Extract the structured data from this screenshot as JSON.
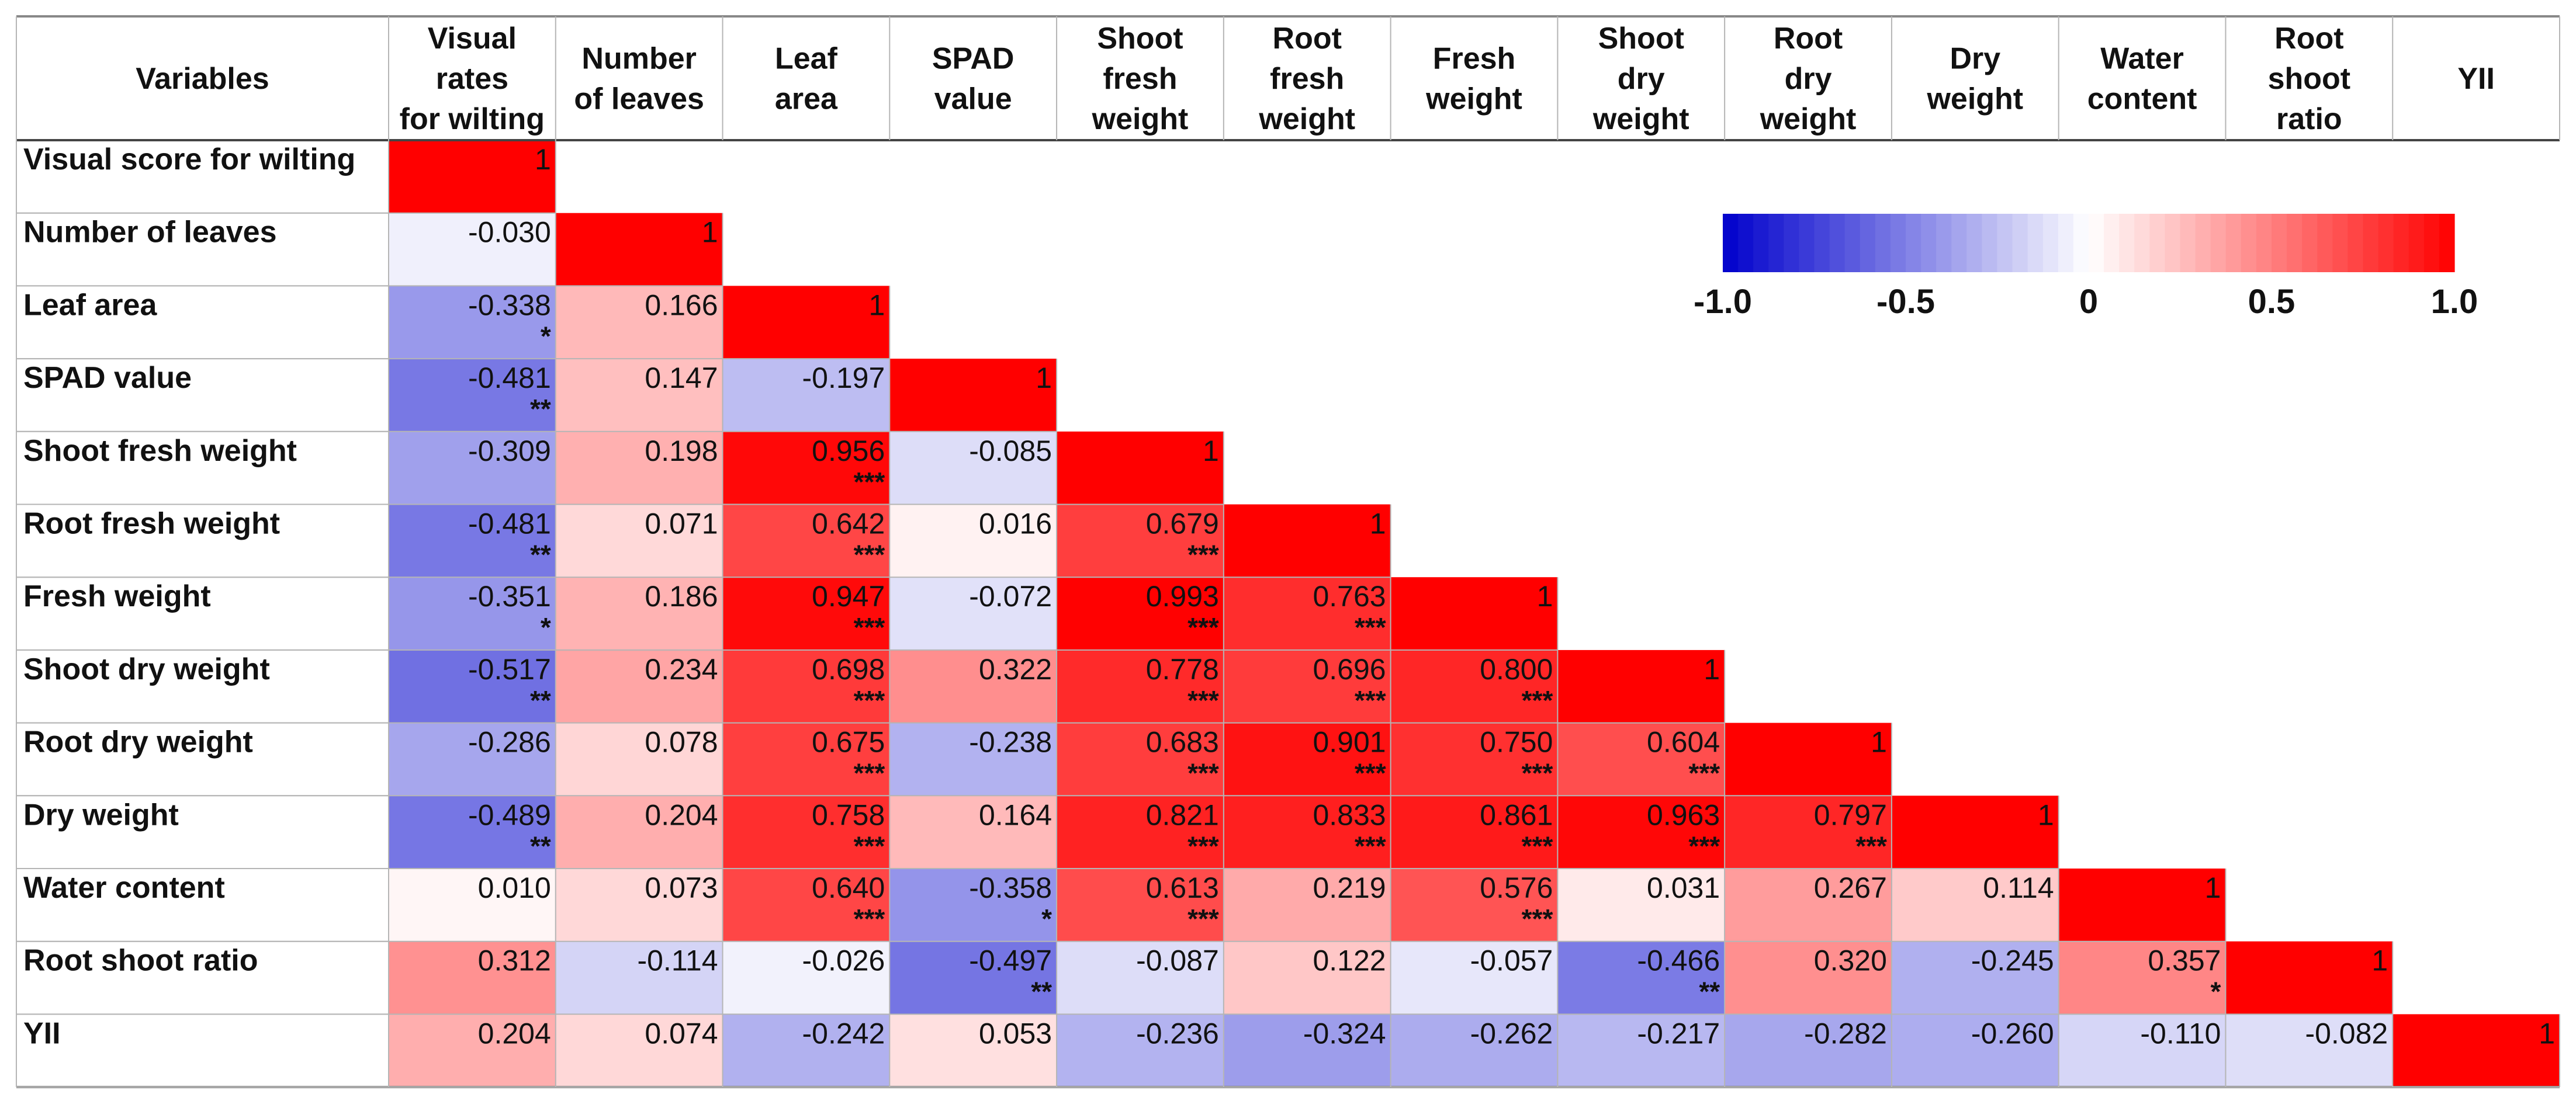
{
  "chart_data": {
    "type": "heatmap",
    "title": "",
    "corner_label": "Variables",
    "column_labels": [
      [
        "Visual",
        "rates",
        "for wilting"
      ],
      [
        "Number",
        "of leaves"
      ],
      [
        "Leaf",
        "area"
      ],
      [
        "SPAD",
        "value"
      ],
      [
        "Shoot",
        "fresh",
        "weight"
      ],
      [
        "Root",
        "fresh",
        "weight"
      ],
      [
        "Fresh",
        "weight"
      ],
      [
        "Shoot",
        "dry",
        "weight"
      ],
      [
        "Root",
        "dry",
        "weight"
      ],
      [
        "Dry",
        "weight"
      ],
      [
        "Water",
        "content"
      ],
      [
        "Root",
        "shoot",
        "ratio"
      ],
      [
        "YII"
      ]
    ],
    "row_labels": [
      "Visual score for wilting",
      "Number of leaves",
      "Leaf area",
      "SPAD value",
      "Shoot fresh weight",
      "Root fresh weight",
      "Fresh weight",
      "Shoot dry weight",
      "Root dry weight",
      "Dry weight",
      "Water content",
      "Root shoot ratio",
      "YII"
    ],
    "values": [
      [
        "1"
      ],
      [
        "-0.030",
        "1"
      ],
      [
        "-0.338",
        "0.166",
        "1"
      ],
      [
        "-0.481",
        "0.147",
        "-0.197",
        "1"
      ],
      [
        "-0.309",
        "0.198",
        "0.956",
        "-0.085",
        "1"
      ],
      [
        "-0.481",
        "0.071",
        "0.642",
        "0.016",
        "0.679",
        "1"
      ],
      [
        "-0.351",
        "0.186",
        "0.947",
        "-0.072",
        "0.993",
        "0.763",
        "1"
      ],
      [
        "-0.517",
        "0.234",
        "0.698",
        "0.322",
        "0.778",
        "0.696",
        "0.800",
        "1"
      ],
      [
        "-0.286",
        "0.078",
        "0.675",
        "-0.238",
        "0.683",
        "0.901",
        "0.750",
        "0.604",
        "1"
      ],
      [
        "-0.489",
        "0.204",
        "0.758",
        "0.164",
        "0.821",
        "0.833",
        "0.861",
        "0.963",
        "0.797",
        "1"
      ],
      [
        "0.010",
        "0.073",
        "0.640",
        "-0.358",
        "0.613",
        "0.219",
        "0.576",
        "0.031",
        "0.267",
        "0.114",
        "1"
      ],
      [
        "0.312",
        "-0.114",
        "-0.026",
        "-0.497",
        "-0.087",
        "0.122",
        "-0.057",
        "-0.466",
        "0.320",
        "-0.245",
        "0.357",
        "1"
      ],
      [
        "0.204",
        "0.074",
        "-0.242",
        "0.053",
        "-0.236",
        "-0.324",
        "-0.262",
        "-0.217",
        "-0.282",
        "-0.260",
        "-0.110",
        "-0.082",
        "1"
      ]
    ],
    "significance": [
      [
        ""
      ],
      [
        "",
        ""
      ],
      [
        "*",
        "",
        ""
      ],
      [
        "**",
        "",
        "",
        ""
      ],
      [
        "",
        "",
        "***",
        "",
        ""
      ],
      [
        "**",
        "",
        "***",
        "",
        "***",
        ""
      ],
      [
        "*",
        "",
        "***",
        "",
        "***",
        "***",
        ""
      ],
      [
        "**",
        "",
        "***",
        "",
        "***",
        "***",
        "***",
        ""
      ],
      [
        "",
        "",
        "***",
        "",
        "***",
        "***",
        "***",
        "***",
        ""
      ],
      [
        "**",
        "",
        "***",
        "",
        "***",
        "***",
        "***",
        "***",
        "***",
        ""
      ],
      [
        "",
        "",
        "***",
        "*",
        "***",
        "",
        "***",
        "",
        "",
        "",
        ""
      ],
      [
        "",
        "",
        "",
        "**",
        "",
        "",
        "",
        "**",
        "",
        "",
        "*",
        ""
      ],
      [
        "",
        "",
        "",
        "",
        "",
        "",
        "",
        "",
        "",
        "",
        "",
        "",
        ""
      ]
    ],
    "color_scale": {
      "min": -1.0,
      "max": 1.0,
      "low_color": "#0000cc",
      "mid_color": "#ffffff",
      "high_color": "#ff0000",
      "tick_labels": [
        "-1.0",
        "-0.5",
        "0",
        "0.5",
        "1.0"
      ],
      "tick_values": [
        -1.0,
        -0.5,
        0,
        0.5,
        1.0
      ],
      "legend_position": "top-right"
    }
  }
}
